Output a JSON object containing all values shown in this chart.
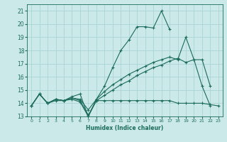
{
  "xlabel": "Humidex (Indice chaleur)",
  "xlim": [
    -0.5,
    23.5
  ],
  "ylim": [
    13,
    21.5
  ],
  "xticks": [
    0,
    1,
    2,
    3,
    4,
    5,
    6,
    7,
    8,
    9,
    10,
    11,
    12,
    13,
    14,
    15,
    16,
    17,
    18,
    19,
    20,
    21,
    22,
    23
  ],
  "yticks": [
    13,
    14,
    15,
    16,
    17,
    18,
    19,
    20,
    21
  ],
  "bg_color": "#cce9e9",
  "grid_color": "#aad4d4",
  "line_color": "#1a6b5a",
  "lines": [
    {
      "x": [
        0,
        1,
        2,
        3,
        4,
        5,
        6,
        7,
        8,
        9,
        10,
        11,
        12,
        13,
        14,
        15,
        16,
        17,
        18,
        19,
        20,
        21,
        22,
        23
      ],
      "y": [
        13.8,
        14.7,
        14.0,
        14.3,
        14.2,
        14.3,
        14.1,
        13.0,
        14.2,
        14.2,
        14.2,
        14.2,
        14.2,
        14.2,
        14.2,
        14.2,
        14.2,
        14.2,
        14.0,
        14.0,
        14.0,
        14.0,
        13.9,
        13.8
      ]
    },
    {
      "x": [
        0,
        1,
        2,
        3,
        4,
        5,
        6,
        7,
        8,
        9,
        10,
        11,
        12,
        13,
        14,
        15,
        16,
        17
      ],
      "y": [
        13.8,
        14.7,
        14.0,
        14.2,
        14.2,
        14.5,
        14.7,
        13.0,
        14.3,
        15.3,
        16.7,
        18.0,
        18.8,
        19.8,
        19.8,
        19.7,
        21.0,
        19.6
      ]
    },
    {
      "x": [
        0,
        1,
        2,
        3,
        4,
        5,
        6,
        7,
        8,
        9,
        10,
        11,
        12,
        13,
        14,
        15,
        16,
        17,
        18,
        19,
        20,
        21,
        22
      ],
      "y": [
        13.8,
        14.7,
        14.0,
        14.3,
        14.2,
        14.4,
        14.3,
        13.5,
        14.3,
        14.9,
        15.4,
        15.8,
        16.2,
        16.5,
        16.8,
        17.1,
        17.3,
        17.5,
        17.3,
        19.0,
        17.3,
        17.3,
        15.3
      ]
    },
    {
      "x": [
        0,
        1,
        2,
        3,
        4,
        5,
        6,
        7,
        8,
        9,
        10,
        11,
        12,
        13,
        14,
        15,
        16,
        17,
        18,
        19,
        20,
        21,
        22
      ],
      "y": [
        13.8,
        14.7,
        14.0,
        14.3,
        14.2,
        14.4,
        14.2,
        13.1,
        14.2,
        14.6,
        15.0,
        15.4,
        15.7,
        16.1,
        16.4,
        16.7,
        16.9,
        17.2,
        17.4,
        17.1,
        17.3,
        15.3,
        13.8
      ]
    }
  ]
}
